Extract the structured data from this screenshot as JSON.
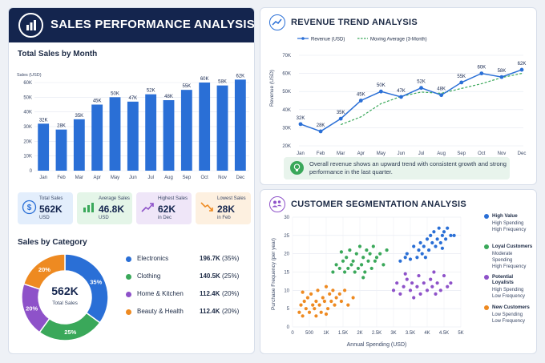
{
  "header": {
    "title": "SALES PERFORMANCE ANALYSIS"
  },
  "monthly": {
    "title": "Total Sales by Month",
    "ylabel": "Sales (USD)",
    "y_ticks": [
      "0",
      "10K",
      "20K",
      "30K",
      "40K",
      "50K",
      "60K"
    ],
    "categories": [
      "Jan",
      "Feb",
      "Mar",
      "Apr",
      "May",
      "Jun",
      "Jul",
      "Aug",
      "Sep",
      "Oct",
      "Nov",
      "Dec"
    ],
    "values": [
      32,
      28,
      35,
      45,
      50,
      47,
      52,
      48,
      55,
      60,
      58,
      62
    ],
    "labels": [
      "32K",
      "28K",
      "35K",
      "45K",
      "50K",
      "47K",
      "52K",
      "48K",
      "55K",
      "60K",
      "58K",
      "62K"
    ],
    "color": "#2a6fd6"
  },
  "kpis": [
    {
      "label": "Total Sales",
      "value": "562K",
      "sub": "USD",
      "bg": "#e3eefc",
      "accent": "#2a6fd6",
      "icon": "dollar-icon"
    },
    {
      "label": "Average Sales",
      "value": "46.8K",
      "sub": "USD",
      "bg": "#e4f5e8",
      "accent": "#3aa85a",
      "icon": "bar-chart-icon"
    },
    {
      "label": "Highest Sales",
      "value": "62K",
      "sub": "in Dec",
      "bg": "#efe6f8",
      "accent": "#8e52c9",
      "icon": "trend-up-icon"
    },
    {
      "label": "Lowest Sales",
      "value": "28K",
      "sub": "in Feb",
      "bg": "#fdf0e0",
      "accent": "#ee8a21",
      "icon": "trend-down-icon"
    }
  ],
  "category": {
    "title": "Sales by Category",
    "center_value": "562K",
    "center_label": "Total Sales",
    "items": [
      {
        "name": "Electronics",
        "value": "196.7K",
        "pct": "(35%)",
        "share": 35,
        "slice_label": "35%",
        "color": "#2a6fd6"
      },
      {
        "name": "Clothing",
        "value": "140.5K",
        "pct": "(25%)",
        "share": 25,
        "slice_label": "25%",
        "color": "#3aa85a"
      },
      {
        "name": "Home & Kitchen",
        "value": "112.4K",
        "pct": "(20%)",
        "share": 20,
        "slice_label": "20%",
        "color": "#8e52c9"
      },
      {
        "name": "Beauty & Health",
        "value": "112.4K",
        "pct": "(20%)",
        "share": 20,
        "slice_label": "20%",
        "color": "#ee8a21"
      }
    ]
  },
  "trend": {
    "title": "REVENUE TREND ANALYSIS",
    "legend": [
      "Revenue (USD)",
      "Moving Average (3-Month)"
    ],
    "ylabel": "Revenue (USD)",
    "y_ticks": [
      "20K",
      "30K",
      "40K",
      "50K",
      "60K",
      "70K"
    ],
    "categories": [
      "Jan",
      "Feb",
      "Mar",
      "Apr",
      "May",
      "Jun",
      "Jul",
      "Aug",
      "Sep",
      "Oct",
      "Nov",
      "Dec"
    ],
    "values": [
      32,
      28,
      35,
      45,
      50,
      47,
      52,
      48,
      55,
      60,
      58,
      62
    ],
    "labels": [
      "32K",
      "28K",
      "35K",
      "45K",
      "50K",
      "47K",
      "52K",
      "48K",
      "55K",
      "60K",
      "58K",
      "62K"
    ],
    "moving_avg": [
      null,
      null,
      31.7,
      36,
      43.3,
      47.3,
      49.7,
      49,
      51.7,
      54.3,
      57.7,
      60
    ],
    "line_color": "#2a6fd6",
    "ma_color": "#3aa85a",
    "insight": "Overall revenue shows an upward trend with consistent growth and strong performance in the last quarter."
  },
  "segmentation": {
    "title": "CUSTOMER SEGMENTATION ANALYSIS",
    "xlabel": "Annual Spending (USD)",
    "ylabel": "Purchase Frequency (per year)",
    "x_ticks": [
      "0",
      "500",
      "1K",
      "1.5K",
      "2K",
      "2.5K",
      "3K",
      "3.5K",
      "4K",
      "4.5K",
      "5K"
    ],
    "y_ticks": [
      "0",
      "5",
      "10",
      "15",
      "20",
      "25",
      "30"
    ],
    "xlim": [
      0,
      5000
    ],
    "ylim": [
      0,
      30
    ],
    "segments": [
      {
        "name": "High Value",
        "desc": [
          "High Spending",
          "High Frequency"
        ],
        "color": "#2a6fd6",
        "points": [
          [
            3200,
            18
          ],
          [
            3350,
            19
          ],
          [
            3400,
            20
          ],
          [
            3500,
            18.5
          ],
          [
            3600,
            22
          ],
          [
            3700,
            19
          ],
          [
            3750,
            21
          ],
          [
            3800,
            23
          ],
          [
            3850,
            20
          ],
          [
            3900,
            22
          ],
          [
            4000,
            24
          ],
          [
            4050,
            21
          ],
          [
            4100,
            25
          ],
          [
            4150,
            23
          ],
          [
            4200,
            26
          ],
          [
            4250,
            22
          ],
          [
            4300,
            24
          ],
          [
            4350,
            27
          ],
          [
            4400,
            23
          ],
          [
            4450,
            25
          ],
          [
            4500,
            26
          ],
          [
            4550,
            24
          ],
          [
            4600,
            27
          ],
          [
            4700,
            25
          ],
          [
            4800,
            25
          ],
          [
            3950,
            19
          ],
          [
            4450,
            21.5
          ]
        ]
      },
      {
        "name": "Loyal Customers",
        "desc": [
          "Moderate Spending",
          "High Frequency"
        ],
        "color": "#3aa85a",
        "points": [
          [
            1200,
            15
          ],
          [
            1300,
            17
          ],
          [
            1400,
            16
          ],
          [
            1500,
            18
          ],
          [
            1550,
            15
          ],
          [
            1600,
            19
          ],
          [
            1650,
            16
          ],
          [
            1700,
            21
          ],
          [
            1750,
            17
          ],
          [
            1800,
            18
          ],
          [
            1850,
            15
          ],
          [
            1900,
            20
          ],
          [
            1950,
            16
          ],
          [
            2000,
            22
          ],
          [
            2050,
            17
          ],
          [
            2100,
            19
          ],
          [
            2150,
            15
          ],
          [
            2200,
            21
          ],
          [
            2250,
            18
          ],
          [
            2300,
            20
          ],
          [
            2350,
            16
          ],
          [
            2400,
            22
          ],
          [
            2450,
            18
          ],
          [
            2500,
            19
          ],
          [
            2600,
            20
          ],
          [
            2700,
            17
          ],
          [
            2800,
            21
          ],
          [
            1450,
            20.5
          ],
          [
            2100,
            13.5
          ]
        ]
      },
      {
        "name": "Potential Loyalists",
        "desc": [
          "High Spending",
          "Low Frequency"
        ],
        "color": "#8e52c9",
        "points": [
          [
            3000,
            10
          ],
          [
            3100,
            12
          ],
          [
            3200,
            9
          ],
          [
            3300,
            11
          ],
          [
            3400,
            13
          ],
          [
            3500,
            10
          ],
          [
            3550,
            12
          ],
          [
            3600,
            8
          ],
          [
            3700,
            11
          ],
          [
            3750,
            14
          ],
          [
            3800,
            9
          ],
          [
            3900,
            12
          ],
          [
            4000,
            10
          ],
          [
            4100,
            13
          ],
          [
            4150,
            11
          ],
          [
            4200,
            15
          ],
          [
            4250,
            9
          ],
          [
            4300,
            12
          ],
          [
            4400,
            10
          ],
          [
            4500,
            14
          ],
          [
            4600,
            11
          ],
          [
            4700,
            12
          ],
          [
            3350,
            14.5
          ]
        ]
      },
      {
        "name": "New Customers",
        "desc": [
          "Low Spending",
          "Low Frequency"
        ],
        "color": "#ee8a21",
        "points": [
          [
            200,
            4
          ],
          [
            250,
            6
          ],
          [
            300,
            3
          ],
          [
            350,
            7
          ],
          [
            400,
            5
          ],
          [
            450,
            8
          ],
          [
            500,
            4
          ],
          [
            550,
            9
          ],
          [
            600,
            6
          ],
          [
            650,
            5
          ],
          [
            700,
            7
          ],
          [
            750,
            10
          ],
          [
            800,
            6
          ],
          [
            850,
            4
          ],
          [
            900,
            8
          ],
          [
            950,
            7
          ],
          [
            1000,
            11
          ],
          [
            1050,
            5
          ],
          [
            1100,
            9
          ],
          [
            1150,
            7
          ],
          [
            1200,
            10
          ],
          [
            1250,
            6
          ],
          [
            1300,
            8
          ],
          [
            1400,
            9
          ],
          [
            1450,
            7
          ],
          [
            1550,
            10
          ],
          [
            1650,
            6
          ],
          [
            1800,
            8
          ],
          [
            300,
            9.5
          ],
          [
            700,
            3
          ],
          [
            1000,
            3.5
          ]
        ]
      }
    ]
  }
}
